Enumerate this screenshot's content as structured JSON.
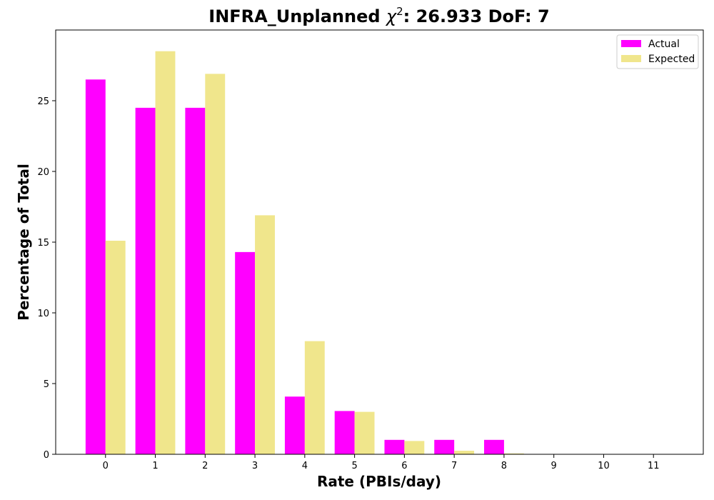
{
  "chart_data": {
    "type": "bar",
    "title_prefix": "INFRA_Unplanned ",
    "title_chi": "χ",
    "title_sup": "2",
    "title_suffix": ": 26.933 DoF: 7",
    "xlabel": "Rate (PBIs/day)",
    "ylabel": "Percentage of Total",
    "categories": [
      0,
      1,
      2,
      3,
      4,
      5,
      6,
      7,
      8,
      9,
      10,
      11
    ],
    "xtick_labels": [
      "0",
      "1",
      "2",
      "3",
      "4",
      "5",
      "6",
      "7",
      "8",
      "9",
      "10",
      "11"
    ],
    "yticks": [
      0,
      5,
      10,
      15,
      20,
      25
    ],
    "ytick_labels": [
      "0",
      "5",
      "10",
      "15",
      "20",
      "25"
    ],
    "ylim": [
      0,
      30
    ],
    "xlim": [
      -1,
      12
    ],
    "grid": false,
    "legend_position": "top-right",
    "series": [
      {
        "name": "Actual",
        "color": "#ff00ff",
        "values": [
          26.5,
          24.5,
          24.5,
          14.3,
          4.08,
          3.06,
          1.02,
          1.02,
          1.02,
          0,
          0,
          0
        ]
      },
      {
        "name": "Expected",
        "color": "#f0e68c",
        "values": [
          15.1,
          28.5,
          26.9,
          16.9,
          8.0,
          3.0,
          0.94,
          0.25,
          0.06,
          0.01,
          0,
          0
        ]
      }
    ]
  }
}
